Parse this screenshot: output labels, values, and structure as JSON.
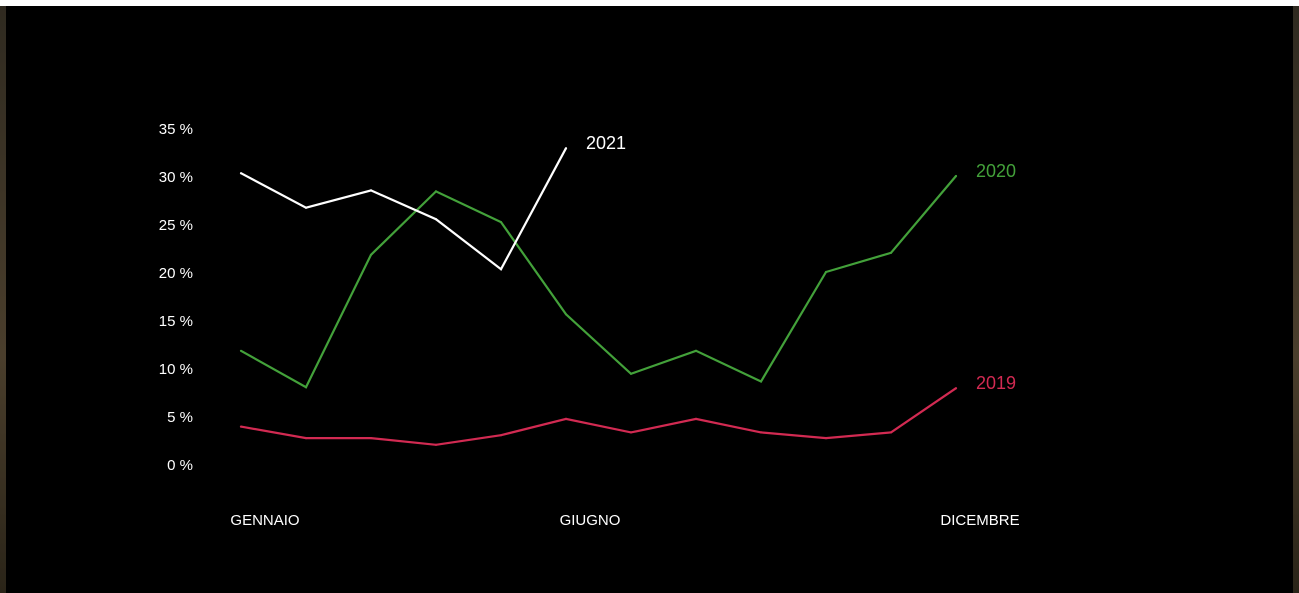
{
  "chart_data": {
    "type": "line",
    "title": "",
    "xlabel": "",
    "ylabel": "",
    "ylim": [
      0,
      35
    ],
    "y_ticks": [
      {
        "value": 0,
        "label": "0 %"
      },
      {
        "value": 5,
        "label": "5 %"
      },
      {
        "value": 10,
        "label": "10 %"
      },
      {
        "value": 15,
        "label": "15 %"
      },
      {
        "value": 20,
        "label": "20 %"
      },
      {
        "value": 25,
        "label": "25 %"
      },
      {
        "value": 30,
        "label": "30 %"
      },
      {
        "value": 35,
        "label": "35 %"
      }
    ],
    "x_tick_labels": [
      {
        "month": 1,
        "label": "GENNAIO"
      },
      {
        "month": 6,
        "label": "GIUGNO"
      },
      {
        "month": 12,
        "label": "DICEMBRE"
      }
    ],
    "grid": false,
    "legend": "inline labels at line ends",
    "background_color": "#000000",
    "series": [
      {
        "name": "2019",
        "color": "#d22a52",
        "x": [
          1,
          2,
          3,
          4,
          5,
          6,
          7,
          8,
          9,
          10,
          11,
          12
        ],
        "values": [
          4.0,
          2.8,
          2.8,
          2.1,
          3.1,
          4.8,
          3.4,
          4.8,
          3.4,
          2.8,
          3.4,
          8.0
        ]
      },
      {
        "name": "2020",
        "color": "#43a13a",
        "x": [
          1,
          2,
          3,
          4,
          5,
          6,
          7,
          8,
          9,
          10,
          11,
          12
        ],
        "values": [
          11.9,
          8.1,
          21.9,
          28.5,
          25.3,
          15.7,
          9.5,
          11.9,
          8.7,
          20.1,
          22.1,
          30.1
        ]
      },
      {
        "name": "2021",
        "color": "#ffffff",
        "x": [
          1,
          2,
          3,
          4,
          5,
          6
        ],
        "values": [
          30.4,
          26.8,
          28.6,
          25.6,
          20.4,
          33.0
        ]
      }
    ]
  }
}
